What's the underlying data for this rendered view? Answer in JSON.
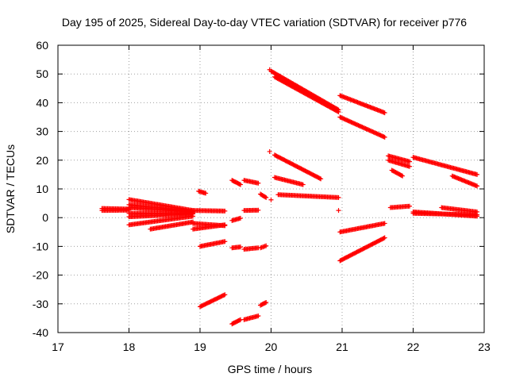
{
  "chart_data": {
    "type": "scatter",
    "title": "Day 195 of 2025, Sidereal Day-to-day VTEC variation (SDTVAR) for receiver p776",
    "xlabel": "GPS time / hours",
    "ylabel": "SDTVAR / TECUs",
    "xlim": [
      17,
      23
    ],
    "ylim": [
      -40,
      60
    ],
    "xticks": [
      "17",
      "18",
      "19",
      "20",
      "21",
      "22",
      "23"
    ],
    "yticks": [
      "-40",
      "-30",
      "-20",
      "-10",
      "0",
      "10",
      "20",
      "30",
      "40",
      "50",
      "60"
    ],
    "grid": true,
    "marker": "plus",
    "marker_color": "#ff0000",
    "segments": [
      {
        "x0": 17.62,
        "y0": 3.2,
        "x1": 18.0,
        "y1": 3.0
      },
      {
        "x0": 17.62,
        "y0": 2.5,
        "x1": 18.0,
        "y1": 2.6
      },
      {
        "x0": 18.0,
        "y0": 6.3,
        "x1": 18.9,
        "y1": 2.5
      },
      {
        "x0": 18.0,
        "y0": 4.5,
        "x1": 18.9,
        "y1": 2.2
      },
      {
        "x0": 18.0,
        "y0": 3.5,
        "x1": 18.9,
        "y1": 2.0
      },
      {
        "x0": 18.0,
        "y0": 1.5,
        "x1": 18.9,
        "y1": 1.5
      },
      {
        "x0": 18.0,
        "y0": 0.3,
        "x1": 18.9,
        "y1": 1.3
      },
      {
        "x0": 18.0,
        "y0": -2.5,
        "x1": 18.9,
        "y1": 0.5
      },
      {
        "x0": 18.3,
        "y0": -4.0,
        "x1": 18.9,
        "y1": -1.5
      },
      {
        "x0": 18.9,
        "y0": 2.5,
        "x1": 19.35,
        "y1": 2.3
      },
      {
        "x0": 18.9,
        "y0": -2.0,
        "x1": 19.35,
        "y1": -2.8
      },
      {
        "x0": 18.9,
        "y0": -4.0,
        "x1": 19.35,
        "y1": -2.5
      },
      {
        "x0": 18.98,
        "y0": 9.2,
        "x1": 19.08,
        "y1": 8.5
      },
      {
        "x0": 19.0,
        "y0": -10.0,
        "x1": 19.35,
        "y1": -8.3
      },
      {
        "x0": 19.0,
        "y0": -31.0,
        "x1": 19.35,
        "y1": -26.8
      },
      {
        "x0": 19.45,
        "y0": 13.0,
        "x1": 19.57,
        "y1": 11.5
      },
      {
        "x0": 19.45,
        "y0": -1.0,
        "x1": 19.57,
        "y1": -0.2
      },
      {
        "x0": 19.45,
        "y0": -10.5,
        "x1": 19.57,
        "y1": -10.2
      },
      {
        "x0": 19.45,
        "y0": -37.0,
        "x1": 19.57,
        "y1": -35.5
      },
      {
        "x0": 19.62,
        "y0": 13.0,
        "x1": 19.82,
        "y1": 12.0
      },
      {
        "x0": 19.62,
        "y0": 2.5,
        "x1": 19.82,
        "y1": 2.6
      },
      {
        "x0": 19.62,
        "y0": -11.0,
        "x1": 19.82,
        "y1": -10.5
      },
      {
        "x0": 19.62,
        "y0": -35.5,
        "x1": 19.82,
        "y1": -34.2
      },
      {
        "x0": 19.85,
        "y0": 8.2,
        "x1": 19.93,
        "y1": 7.0
      },
      {
        "x0": 19.85,
        "y0": -10.5,
        "x1": 19.93,
        "y1": -9.8
      },
      {
        "x0": 19.85,
        "y0": -30.5,
        "x1": 19.93,
        "y1": -29.5
      },
      {
        "x0": 20.0,
        "y0": 51.0,
        "x1": 20.95,
        "y1": 37.5
      },
      {
        "x0": 20.05,
        "y0": 49.0,
        "x1": 20.95,
        "y1": 36.8
      },
      {
        "x0": 20.05,
        "y0": 21.8,
        "x1": 20.7,
        "y1": 13.5
      },
      {
        "x0": 20.05,
        "y0": 14.0,
        "x1": 20.45,
        "y1": 11.5
      },
      {
        "x0": 20.1,
        "y0": 8.0,
        "x1": 20.95,
        "y1": 7.0
      },
      {
        "x0": 20.97,
        "y0": 42.5,
        "x1": 21.6,
        "y1": 36.5
      },
      {
        "x0": 20.97,
        "y0": 35.0,
        "x1": 21.6,
        "y1": 28.0
      },
      {
        "x0": 20.97,
        "y0": -5.0,
        "x1": 21.6,
        "y1": -2.0
      },
      {
        "x0": 20.97,
        "y0": -15.0,
        "x1": 21.6,
        "y1": -7.0
      },
      {
        "x0": 21.65,
        "y0": 21.5,
        "x1": 21.95,
        "y1": 19.5
      },
      {
        "x0": 21.65,
        "y0": 20.0,
        "x1": 21.95,
        "y1": 17.8
      },
      {
        "x0": 21.7,
        "y0": 16.5,
        "x1": 21.85,
        "y1": 14.5
      },
      {
        "x0": 21.68,
        "y0": 3.5,
        "x1": 21.95,
        "y1": 4.0
      },
      {
        "x0": 22.0,
        "y0": 21.0,
        "x1": 22.9,
        "y1": 15.0
      },
      {
        "x0": 22.0,
        "y0": 1.5,
        "x1": 22.9,
        "y1": 1.0
      },
      {
        "x0": 22.0,
        "y0": 2.0,
        "x1": 22.9,
        "y1": 0.5
      },
      {
        "x0": 22.4,
        "y0": 3.5,
        "x1": 22.9,
        "y1": 2.0
      },
      {
        "x0": 22.55,
        "y0": 14.5,
        "x1": 22.9,
        "y1": 11.0
      }
    ],
    "points": [
      {
        "x": 19.98,
        "y": 23.0
      },
      {
        "x": 20.0,
        "y": 6.2
      },
      {
        "x": 20.95,
        "y": 2.5
      },
      {
        "x": 19.98,
        "y": 51.5
      }
    ]
  }
}
